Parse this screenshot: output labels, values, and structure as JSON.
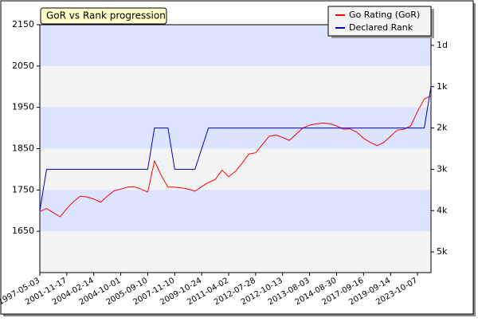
{
  "chart_data": {
    "type": "line",
    "title": "GoR vs Rank progression",
    "categories": [
      "1997-05-03",
      null,
      null,
      null,
      "2001-11-17",
      null,
      null,
      null,
      "2004-02-14",
      null,
      null,
      null,
      "2004-10-01",
      null,
      null,
      null,
      "2005-09-10",
      null,
      null,
      null,
      "2007-11-10",
      null,
      null,
      null,
      "2009-10-24",
      null,
      null,
      null,
      "2011-04-02",
      null,
      null,
      null,
      "2012-07-28",
      null,
      null,
      null,
      "2012-10-13",
      null,
      null,
      null,
      "2013-08-03",
      null,
      null,
      null,
      "2014-08-30",
      null,
      null,
      null,
      "2017-09-16",
      null,
      null,
      null,
      "2019-09-14",
      null,
      null,
      null,
      "2023-10-07",
      null,
      null
    ],
    "series": [
      {
        "name": "Go Rating (GoR)",
        "color": "#ff0000",
        "values": [
          1698,
          1705,
          1695,
          1685,
          1705,
          1722,
          1735,
          1733,
          1728,
          1720,
          1735,
          1748,
          1752,
          1757,
          1758,
          1752,
          1745,
          1820,
          1785,
          1757,
          1757,
          1755,
          1752,
          1747,
          1758,
          1768,
          1775,
          1798,
          1782,
          1795,
          1815,
          1837,
          1840,
          1860,
          1880,
          1883,
          1877,
          1870,
          1885,
          1900,
          1907,
          1910,
          1912,
          1910,
          1905,
          1897,
          1898,
          1890,
          1875,
          1865,
          1857,
          1865,
          1880,
          1895,
          1897,
          1905,
          1940,
          1970,
          1978
        ]
      },
      {
        "name": "Declared Rank",
        "color": "#0000c0",
        "axis": "y2",
        "values": [
          1700,
          1800,
          1800,
          1800,
          1800,
          1800,
          1800,
          1800,
          1800,
          1800,
          1800,
          1800,
          1800,
          1800,
          1800,
          1800,
          1800,
          1900,
          1900,
          1900,
          1800,
          1800,
          1800,
          1800,
          1850,
          1900,
          1900,
          1900,
          1900,
          1900,
          1900,
          1900,
          1900,
          1900,
          1900,
          1900,
          1900,
          1900,
          1900,
          1900,
          1900,
          1900,
          1900,
          1900,
          1900,
          1900,
          1900,
          1900,
          1900,
          1900,
          1900,
          1900,
          1900,
          1900,
          1900,
          1900,
          1900,
          1900,
          2000
        ]
      }
    ],
    "ylim": [
      1550,
      2150
    ],
    "yticks": [
      1650,
      1750,
      1850,
      1950,
      2050,
      2150
    ],
    "y2lim": [
      1550,
      2150
    ],
    "y2ticks": [
      {
        "value": 1600,
        "label": "5k"
      },
      {
        "value": 1700,
        "label": "4k"
      },
      {
        "value": 1800,
        "label": "3k"
      },
      {
        "value": 1900,
        "label": "2k"
      },
      {
        "value": 2000,
        "label": "1k"
      },
      {
        "value": 2100,
        "label": "1d"
      }
    ],
    "legend": "top-right"
  }
}
